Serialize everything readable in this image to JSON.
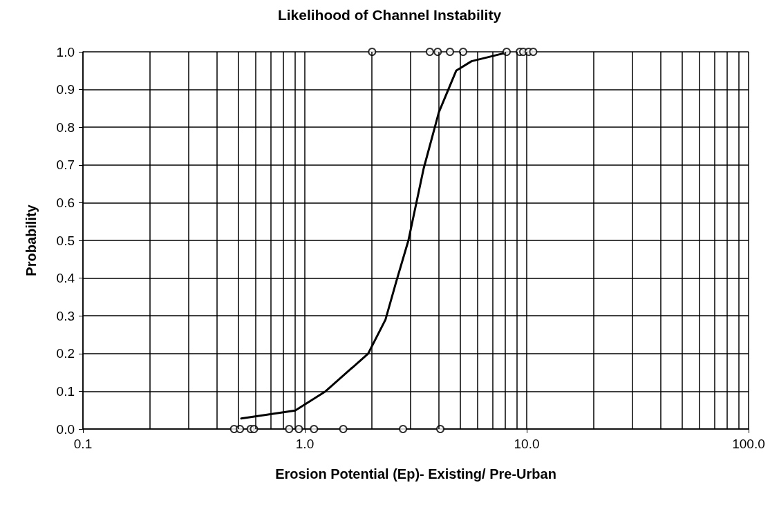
{
  "chart_data": {
    "type": "scatter",
    "title": "Likelihood of Channel Instability",
    "xlabel": "Erosion Potential (Ep)- Existing/ Pre-Urban",
    "ylabel": "Probability",
    "log": "x",
    "grid": true,
    "xlim": [
      0.1,
      100
    ],
    "xticks": [
      {
        "value": 0.1,
        "label": "0.1"
      },
      {
        "value": 1,
        "label": "1.0"
      },
      {
        "value": 10,
        "label": "10.0"
      },
      {
        "value": 100,
        "label": "100.0"
      }
    ],
    "ylim": [
      0,
      1
    ],
    "yticks": [
      {
        "value": 0,
        "label": "0.0"
      },
      0.1,
      0.2,
      0.3,
      0.4,
      0.5,
      0.6,
      0.7,
      0.8,
      0.9,
      {
        "value": 1,
        "label": "1.0"
      }
    ],
    "series": [
      {
        "marker": "circle",
        "color": "#000000",
        "x": [
          0.48,
          0.51,
          0.57,
          0.59,
          0.85,
          0.94,
          1.1,
          1.49,
          2.77,
          4.08,
          2.01,
          3.66,
          3.97,
          4.51,
          5.17,
          8.12,
          9.31,
          9.65,
          10.2,
          10.7
        ],
        "values": [
          0,
          0,
          0,
          0,
          0,
          0,
          0,
          0,
          0,
          0,
          1,
          1,
          1,
          1,
          1,
          1,
          1,
          1,
          1,
          1
        ]
      },
      {
        "type": "line",
        "marker": "none",
        "line_style": "solid",
        "color": "#000000",
        "x": [
          0.517,
          0.905,
          1.24,
          1.93,
          2.31,
          2.58,
          2.93,
          3.43,
          4.02,
          4.81,
          5.64,
          8.12
        ],
        "values": [
          0.028,
          0.049,
          0.1,
          0.2,
          0.29,
          0.39,
          0.5,
          0.69,
          0.84,
          0.95,
          0.975,
          0.998
        ]
      }
    ]
  }
}
